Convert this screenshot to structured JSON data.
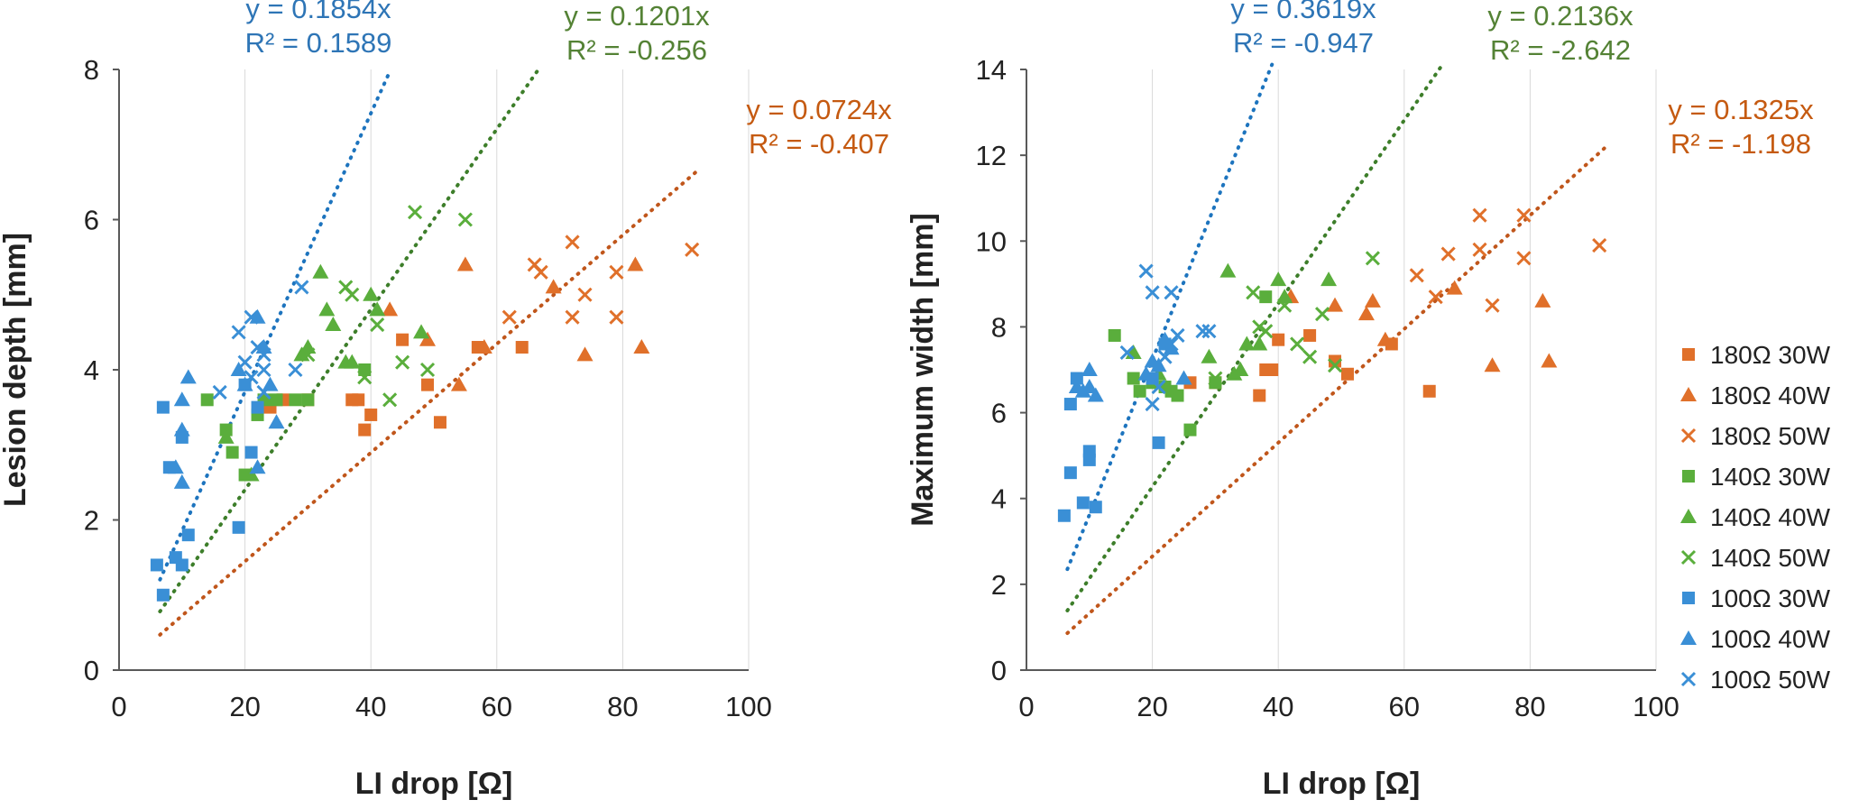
{
  "colors": {
    "orange": "#E0702A",
    "green": "#5AAE3C",
    "blue": "#3A8FD6",
    "orange_trend": "#C0561B",
    "green_trend": "#3D7E2A",
    "blue_trend": "#1D74BE",
    "orange_text": "#C55A11",
    "green_text": "#548235",
    "blue_text": "#2E75B6",
    "axis": "#595959",
    "grid": "#D9D9D9"
  },
  "legend": [
    {
      "label": "180Ω   30W",
      "color": "orange",
      "marker": "square"
    },
    {
      "label": "180Ω   40W",
      "color": "orange",
      "marker": "triangle"
    },
    {
      "label": "180Ω   50W",
      "color": "orange",
      "marker": "x"
    },
    {
      "label": "140Ω   30W",
      "color": "green",
      "marker": "square"
    },
    {
      "label": "140Ω   40W",
      "color": "green",
      "marker": "triangle"
    },
    {
      "label": "140Ω   50W",
      "color": "green",
      "marker": "x"
    },
    {
      "label": "100Ω   30W",
      "color": "blue",
      "marker": "square"
    },
    {
      "label": "100Ω   40W",
      "color": "blue",
      "marker": "triangle"
    },
    {
      "label": "100Ω   50W",
      "color": "blue",
      "marker": "x"
    }
  ],
  "chart_data": [
    {
      "type": "scatter",
      "xlabel": "LI drop [Ω]",
      "ylabel": "Lesion depth [mm]",
      "xlim": [
        0,
        100
      ],
      "ylim": [
        0,
        8
      ],
      "xticks": [
        "0",
        "20",
        "40",
        "60",
        "80",
        "100"
      ],
      "yticks": [
        "0",
        "2",
        "4",
        "6",
        "8"
      ],
      "grid": "vertical",
      "trendlines": [
        {
          "group": "blue",
          "slope": 0.1854,
          "x_range": [
            6.5,
            43
          ],
          "equation": "y = 0.1854x",
          "r2": "R² = 0.1589"
        },
        {
          "group": "green",
          "slope": 0.1201,
          "x_range": [
            6.5,
            67
          ],
          "equation": "y = 0.1201x",
          "r2": "R² = -0.256"
        },
        {
          "group": "orange",
          "slope": 0.0724,
          "x_range": [
            6.5,
            92
          ],
          "equation": "y = 0.0724x",
          "r2": "R² = -0.407"
        }
      ],
      "series": [
        {
          "group": "orange",
          "marker": "square",
          "points": [
            [
              24,
              3.5
            ],
            [
              26,
              3.6
            ],
            [
              30,
              3.6
            ],
            [
              37,
              3.6
            ],
            [
              38,
              3.6
            ],
            [
              39,
              3.2
            ],
            [
              40,
              3.4
            ],
            [
              45,
              4.4
            ],
            [
              49,
              3.8
            ],
            [
              51,
              3.3
            ],
            [
              57,
              4.3
            ],
            [
              64,
              4.3
            ]
          ]
        },
        {
          "group": "orange",
          "marker": "triangle",
          "points": [
            [
              43,
              4.8
            ],
            [
              49,
              4.4
            ],
            [
              54,
              3.8
            ],
            [
              55,
              5.4
            ],
            [
              58,
              4.3
            ],
            [
              69,
              5.1
            ],
            [
              74,
              4.2
            ],
            [
              82,
              5.4
            ],
            [
              83,
              4.3
            ]
          ]
        },
        {
          "group": "orange",
          "marker": "x",
          "points": [
            [
              62,
              4.7
            ],
            [
              66,
              5.4
            ],
            [
              67,
              5.3
            ],
            [
              72,
              5.7
            ],
            [
              72,
              4.7
            ],
            [
              74,
              5.0
            ],
            [
              79,
              5.3
            ],
            [
              79,
              4.7
            ],
            [
              91,
              5.6
            ]
          ]
        },
        {
          "group": "green",
          "marker": "square",
          "points": [
            [
              14,
              3.6
            ],
            [
              17,
              3.2
            ],
            [
              18,
              2.9
            ],
            [
              20,
              2.6
            ],
            [
              22,
              3.4
            ],
            [
              23,
              3.6
            ],
            [
              25,
              3.6
            ],
            [
              28,
              3.6
            ],
            [
              30,
              3.6
            ],
            [
              39,
              4.0
            ]
          ]
        },
        {
          "group": "green",
          "marker": "triangle",
          "points": [
            [
              17,
              3.1
            ],
            [
              21,
              2.6
            ],
            [
              29,
              4.2
            ],
            [
              30,
              4.3
            ],
            [
              32,
              5.3
            ],
            [
              33,
              4.8
            ],
            [
              34,
              4.6
            ],
            [
              36,
              4.1
            ],
            [
              37,
              4.1
            ],
            [
              40,
              5.0
            ],
            [
              41,
              4.8
            ],
            [
              48,
              4.5
            ]
          ]
        },
        {
          "group": "green",
          "marker": "x",
          "points": [
            [
              30,
              4.2
            ],
            [
              36,
              5.1
            ],
            [
              37,
              5.0
            ],
            [
              39,
              3.9
            ],
            [
              41,
              4.6
            ],
            [
              43,
              3.6
            ],
            [
              45,
              4.1
            ],
            [
              47,
              6.1
            ],
            [
              49,
              4.0
            ],
            [
              55,
              6.0
            ]
          ]
        },
        {
          "group": "blue",
          "marker": "square",
          "points": [
            [
              6,
              1.4
            ],
            [
              7,
              1.0
            ],
            [
              7,
              3.5
            ],
            [
              8,
              2.7
            ],
            [
              9,
              1.5
            ],
            [
              10,
              1.4
            ],
            [
              10,
              3.1
            ],
            [
              11,
              1.8
            ],
            [
              19,
              1.9
            ],
            [
              20,
              3.8
            ],
            [
              21,
              2.9
            ],
            [
              22,
              3.5
            ]
          ]
        },
        {
          "group": "blue",
          "marker": "triangle",
          "points": [
            [
              9,
              2.7
            ],
            [
              10,
              2.5
            ],
            [
              10,
              3.6
            ],
            [
              10,
              3.2
            ],
            [
              11,
              3.9
            ],
            [
              19,
              4.0
            ],
            [
              20,
              3.8
            ],
            [
              22,
              4.7
            ],
            [
              22,
              2.7
            ],
            [
              23,
              4.3
            ],
            [
              24,
              3.8
            ],
            [
              25,
              3.3
            ]
          ]
        },
        {
          "group": "blue",
          "marker": "x",
          "points": [
            [
              16,
              3.7
            ],
            [
              19,
              4.5
            ],
            [
              20,
              4.1
            ],
            [
              21,
              4.7
            ],
            [
              21,
              3.9
            ],
            [
              22,
              4.3
            ],
            [
              23,
              4.0
            ],
            [
              23,
              4.2
            ],
            [
              23,
              3.7
            ],
            [
              28,
              4.0
            ],
            [
              29,
              5.1
            ]
          ]
        }
      ]
    },
    {
      "type": "scatter",
      "xlabel": "LI drop [Ω]",
      "ylabel": "Maximum width [mm]",
      "xlim": [
        0,
        100
      ],
      "ylim": [
        0,
        14
      ],
      "xticks": [
        "0",
        "20",
        "40",
        "60",
        "80",
        "100"
      ],
      "yticks": [
        "0",
        "2",
        "4",
        "6",
        "8",
        "10",
        "12",
        "14"
      ],
      "grid": "vertical",
      "trendlines": [
        {
          "group": "blue",
          "slope": 0.3619,
          "x_range": [
            6.5,
            39
          ],
          "equation": "y = 0.3619x",
          "r2": "R² = -0.947"
        },
        {
          "group": "green",
          "slope": 0.2136,
          "x_range": [
            6.5,
            66
          ],
          "equation": "y = 0.2136x",
          "r2": "R² = -2.642"
        },
        {
          "group": "orange",
          "slope": 0.1325,
          "x_range": [
            6.5,
            92
          ],
          "equation": "y = 0.1325x",
          "r2": "R² = -1.198"
        }
      ],
      "series": [
        {
          "group": "orange",
          "marker": "square",
          "points": [
            [
              26,
              6.7
            ],
            [
              30,
              6.7
            ],
            [
              37,
              6.4
            ],
            [
              38,
              7.0
            ],
            [
              39,
              7.0
            ],
            [
              40,
              7.7
            ],
            [
              45,
              7.8
            ],
            [
              49,
              7.2
            ],
            [
              51,
              6.9
            ],
            [
              58,
              7.6
            ],
            [
              64,
              6.5
            ]
          ]
        },
        {
          "group": "orange",
          "marker": "triangle",
          "points": [
            [
              42,
              8.7
            ],
            [
              49,
              8.5
            ],
            [
              54,
              8.3
            ],
            [
              55,
              8.6
            ],
            [
              57,
              7.7
            ],
            [
              68,
              8.9
            ],
            [
              74,
              7.1
            ],
            [
              82,
              8.6
            ],
            [
              83,
              7.2
            ]
          ]
        },
        {
          "group": "orange",
          "marker": "x",
          "points": [
            [
              62,
              9.2
            ],
            [
              65,
              8.7
            ],
            [
              67,
              9.7
            ],
            [
              72,
              10.6
            ],
            [
              72,
              9.8
            ],
            [
              74,
              8.5
            ],
            [
              79,
              10.6
            ],
            [
              79,
              9.6
            ],
            [
              91,
              9.9
            ]
          ]
        },
        {
          "group": "green",
          "marker": "square",
          "points": [
            [
              14,
              7.8
            ],
            [
              17,
              6.8
            ],
            [
              18,
              6.5
            ],
            [
              20,
              6.7
            ],
            [
              22,
              6.6
            ],
            [
              23,
              6.5
            ],
            [
              24,
              6.4
            ],
            [
              26,
              5.6
            ],
            [
              30,
              6.7
            ],
            [
              38,
              8.7
            ]
          ]
        },
        {
          "group": "green",
          "marker": "triangle",
          "points": [
            [
              17,
              7.4
            ],
            [
              21,
              6.9
            ],
            [
              29,
              7.3
            ],
            [
              32,
              9.3
            ],
            [
              33,
              6.9
            ],
            [
              34,
              7.0
            ],
            [
              35,
              7.6
            ],
            [
              37,
              7.6
            ],
            [
              40,
              9.1
            ],
            [
              41,
              8.7
            ],
            [
              48,
              9.1
            ]
          ]
        },
        {
          "group": "green",
          "marker": "x",
          "points": [
            [
              30,
              6.8
            ],
            [
              36,
              8.8
            ],
            [
              37,
              8.0
            ],
            [
              38,
              7.9
            ],
            [
              41,
              8.5
            ],
            [
              43,
              7.6
            ],
            [
              45,
              7.3
            ],
            [
              47,
              8.3
            ],
            [
              49,
              7.1
            ],
            [
              55,
              9.6
            ]
          ]
        },
        {
          "group": "blue",
          "marker": "square",
          "points": [
            [
              6,
              3.6
            ],
            [
              7,
              6.2
            ],
            [
              7,
              4.6
            ],
            [
              8,
              6.8
            ],
            [
              9,
              3.9
            ],
            [
              10,
              5.1
            ],
            [
              10,
              4.9
            ],
            [
              11,
              3.8
            ],
            [
              20,
              6.8
            ],
            [
              21,
              5.3
            ],
            [
              22,
              7.6
            ]
          ]
        },
        {
          "group": "blue",
          "marker": "triangle",
          "points": [
            [
              8,
              6.6
            ],
            [
              9,
              6.5
            ],
            [
              10,
              7.0
            ],
            [
              10,
              6.6
            ],
            [
              11,
              6.4
            ],
            [
              19,
              6.9
            ],
            [
              20,
              7.2
            ],
            [
              21,
              7.1
            ],
            [
              22,
              7.7
            ],
            [
              23,
              7.5
            ],
            [
              25,
              6.8
            ]
          ]
        },
        {
          "group": "blue",
          "marker": "x",
          "points": [
            [
              16,
              7.4
            ],
            [
              19,
              9.3
            ],
            [
              20,
              8.8
            ],
            [
              20,
              6.2
            ],
            [
              21,
              6.6
            ],
            [
              22,
              7.3
            ],
            [
              23,
              8.8
            ],
            [
              23,
              7.6
            ],
            [
              24,
              7.8
            ],
            [
              28,
              7.9
            ],
            [
              29,
              7.9
            ]
          ]
        }
      ]
    }
  ]
}
